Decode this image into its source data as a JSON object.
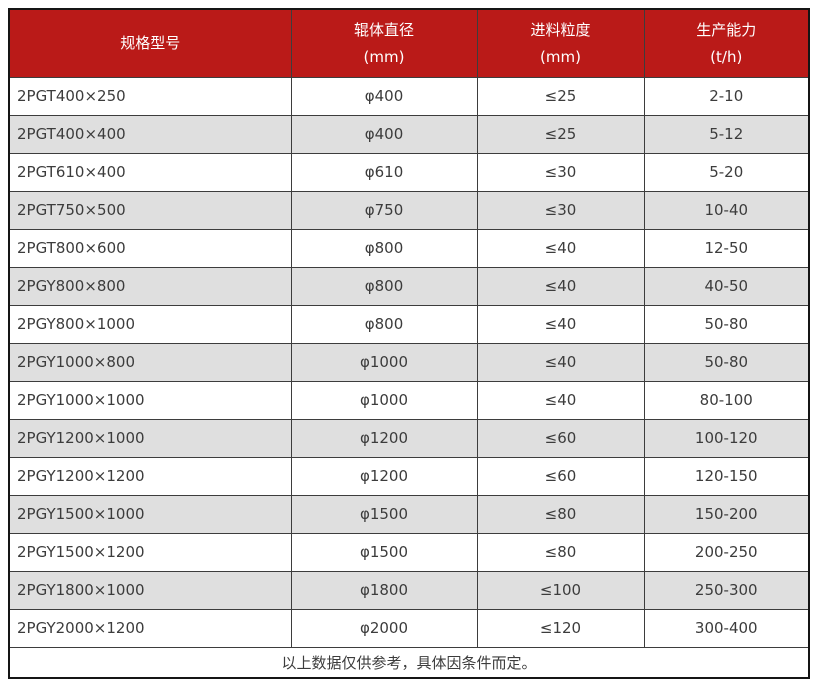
{
  "colors": {
    "header_bg": "#ba1a18",
    "header_text": "#ffffff",
    "row_alt_bg": "#dfdfdf",
    "row_bg": "#ffffff",
    "grid_line": "#3d3d3d",
    "outer_border": "#151515",
    "body_text": "#3c3c3c"
  },
  "table": {
    "columns": [
      {
        "label": "规格型号",
        "unit": ""
      },
      {
        "label": "辊体直径",
        "unit": "(mm)"
      },
      {
        "label": "进料粒度",
        "unit": "(mm)"
      },
      {
        "label": "生产能力",
        "unit": "(t/h)"
      }
    ],
    "rows": [
      {
        "model": "2PGT400×250",
        "roller_diameter": "φ400",
        "feed_size": "≤25",
        "capacity": "2-10"
      },
      {
        "model": "2PGT400×400",
        "roller_diameter": "φ400",
        "feed_size": "≤25",
        "capacity": "5-12"
      },
      {
        "model": "2PGT610×400",
        "roller_diameter": "φ610",
        "feed_size": "≤30",
        "capacity": "5-20"
      },
      {
        "model": "2PGT750×500",
        "roller_diameter": "φ750",
        "feed_size": "≤30",
        "capacity": "10-40"
      },
      {
        "model": "2PGT800×600",
        "roller_diameter": "φ800",
        "feed_size": "≤40",
        "capacity": "12-50"
      },
      {
        "model": "2PGY800×800",
        "roller_diameter": "φ800",
        "feed_size": "≤40",
        "capacity": "40-50"
      },
      {
        "model": "2PGY800×1000",
        "roller_diameter": "φ800",
        "feed_size": "≤40",
        "capacity": "50-80"
      },
      {
        "model": "2PGY1000×800",
        "roller_diameter": "φ1000",
        "feed_size": "≤40",
        "capacity": "50-80"
      },
      {
        "model": "2PGY1000×1000",
        "roller_diameter": "φ1000",
        "feed_size": "≤40",
        "capacity": "80-100"
      },
      {
        "model": "2PGY1200×1000",
        "roller_diameter": "φ1200",
        "feed_size": "≤60",
        "capacity": "100-120"
      },
      {
        "model": "2PGY1200×1200",
        "roller_diameter": "φ1200",
        "feed_size": "≤60",
        "capacity": "120-150"
      },
      {
        "model": "2PGY1500×1000",
        "roller_diameter": "φ1500",
        "feed_size": "≤80",
        "capacity": "150-200"
      },
      {
        "model": "2PGY1500×1200",
        "roller_diameter": "φ1500",
        "feed_size": "≤80",
        "capacity": "200-250"
      },
      {
        "model": "2PGY1800×1000",
        "roller_diameter": "φ1800",
        "feed_size": "≤100",
        "capacity": "250-300"
      },
      {
        "model": "2PGY2000×1200",
        "roller_diameter": "φ2000",
        "feed_size": "≤120",
        "capacity": "300-400"
      }
    ],
    "footnote": "以上数据仅供参考，具体因条件而定。"
  }
}
